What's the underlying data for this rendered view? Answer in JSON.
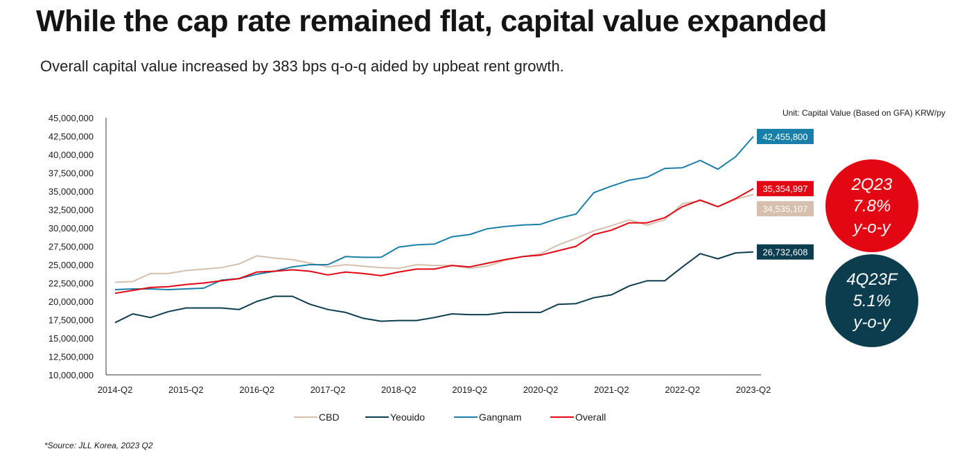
{
  "title": "While the cap rate remained flat, capital value expanded",
  "subtitle": "Overall capital value increased by 383 bps q-o-q aided by upbeat rent growth.",
  "unit_note": "Unit: Capital Value (Based on GFA) KRW/py",
  "source": "*Source: JLL Korea, 2023 Q2",
  "bubbles": [
    {
      "line1": "2Q23",
      "line2": "7.8%",
      "line3": "y-o-y",
      "color": "#e30613"
    },
    {
      "line1": "4Q23F",
      "line2": "5.1%",
      "line3": "y-o-y",
      "color": "#0b3d4e"
    }
  ],
  "chart_data": {
    "type": "line",
    "ylim": [
      10000000,
      45000000
    ],
    "yticks": [
      "10,000,000",
      "12,500,000",
      "15,000,000",
      "17,500,000",
      "20,000,000",
      "22,500,000",
      "25,000,000",
      "27,500,000",
      "30,000,000",
      "32,500,000",
      "35,000,000",
      "37,500,000",
      "40,000,000",
      "42,500,000",
      "45,000,000"
    ],
    "x_tick_labels": [
      "2014-Q2",
      "2015-Q2",
      "2016-Q2",
      "2017-Q2",
      "2018-Q2",
      "2019-Q2",
      "2020-Q2",
      "2021-Q2",
      "2022-Q2",
      "2023-Q2"
    ],
    "x": [
      "2014-Q2",
      "2014-Q3",
      "2014-Q4",
      "2015-Q1",
      "2015-Q2",
      "2015-Q3",
      "2015-Q4",
      "2016-Q1",
      "2016-Q2",
      "2016-Q3",
      "2016-Q4",
      "2017-Q1",
      "2017-Q2",
      "2017-Q3",
      "2017-Q4",
      "2018-Q1",
      "2018-Q2",
      "2018-Q3",
      "2018-Q4",
      "2019-Q1",
      "2019-Q2",
      "2019-Q3",
      "2019-Q4",
      "2020-Q1",
      "2020-Q2",
      "2020-Q3",
      "2020-Q4",
      "2021-Q1",
      "2021-Q2",
      "2021-Q3",
      "2021-Q4",
      "2022-Q1",
      "2022-Q2",
      "2022-Q3",
      "2022-Q4",
      "2023-Q1",
      "2023-Q2"
    ],
    "grid": false,
    "legend_position": "bottom",
    "series": [
      {
        "name": "CBD",
        "color": "#d6bfad",
        "end_label": "34,535,107",
        "values": [
          22600000,
          22700000,
          23800000,
          23800000,
          24200000,
          24400000,
          24600000,
          25100000,
          26200000,
          25900000,
          25700000,
          25200000,
          24700000,
          25000000,
          24800000,
          24600000,
          24500000,
          25000000,
          24900000,
          24900000,
          24500000,
          24800000,
          25600000,
          26100000,
          26500000,
          27700000,
          28600000,
          29600000,
          30300000,
          31100000,
          30400000,
          31100000,
          33300000,
          33700000,
          32900000,
          33900000,
          34535107
        ]
      },
      {
        "name": "Yeouido",
        "color": "#0b3d4e",
        "end_label": "26,732,608",
        "values": [
          17100000,
          18300000,
          17800000,
          18600000,
          19100000,
          19100000,
          19100000,
          18900000,
          20000000,
          20700000,
          20700000,
          19600000,
          18900000,
          18500000,
          17700000,
          17300000,
          17400000,
          17400000,
          17800000,
          18300000,
          18200000,
          18200000,
          18500000,
          18500000,
          18500000,
          19600000,
          19700000,
          20500000,
          20900000,
          22100000,
          22800000,
          22800000,
          24700000,
          26500000,
          25800000,
          26600000,
          26732608
        ]
      },
      {
        "name": "Gangnam",
        "color": "#1a7fa8",
        "end_label": "42,455,800",
        "values": [
          21600000,
          21700000,
          21700000,
          21600000,
          21700000,
          21800000,
          22900000,
          23100000,
          23700000,
          24100000,
          24700000,
          25000000,
          25000000,
          26100000,
          26000000,
          26000000,
          27400000,
          27700000,
          27800000,
          28800000,
          29100000,
          29900000,
          30200000,
          30400000,
          30500000,
          31300000,
          31900000,
          34800000,
          35700000,
          36500000,
          36900000,
          38100000,
          38200000,
          39200000,
          38000000,
          39700000,
          42455800
        ]
      },
      {
        "name": "Overall",
        "color": "#e30613",
        "end_label": "35,354,997",
        "values": [
          21100000,
          21500000,
          21900000,
          22000000,
          22300000,
          22500000,
          22800000,
          23100000,
          24000000,
          24100000,
          24300000,
          24100000,
          23600000,
          24000000,
          23800000,
          23500000,
          24000000,
          24400000,
          24400000,
          24900000,
          24700000,
          25200000,
          25700000,
          26100000,
          26300000,
          26900000,
          27500000,
          29100000,
          29700000,
          30700000,
          30700000,
          31400000,
          32900000,
          33800000,
          32900000,
          34000000,
          35354997
        ]
      }
    ]
  }
}
